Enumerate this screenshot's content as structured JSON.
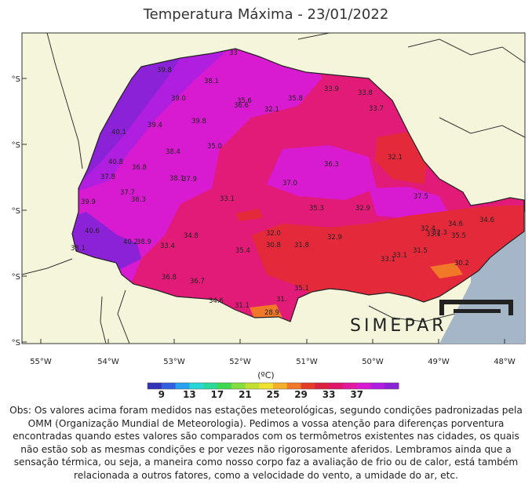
{
  "title": "Temperatura Máxima - 23/01/2022",
  "longitude_ticks": [
    "55°W",
    "54°W",
    "53°W",
    "52°W",
    "51°W",
    "50°W",
    "49°W",
    "48°W"
  ],
  "latitude_ticks": [
    "°S",
    "°S",
    "°S",
    "°S",
    "°S"
  ],
  "station_values": [
    "33",
    "39.8",
    "38.1",
    "39.0",
    "35.6",
    "36.6",
    "35.8",
    "33.9",
    "33.8",
    "32.1",
    "33.7",
    "39.8",
    "39.4",
    "40.1",
    "35.0",
    "38.4",
    "32.1",
    "40.8",
    "36.8",
    "36.3",
    "37.8",
    "38.1",
    "37.9",
    "37.0",
    "37.7",
    "36.3",
    "37.5",
    "39.9",
    "33.1",
    "35.3",
    "32.9",
    "34.6",
    "34.6",
    "40.6",
    "34.8",
    "32.0",
    "32.9",
    "32.4",
    "40.2",
    "38.9",
    "33.4",
    "35.4",
    "30.8",
    "31.8",
    "33.1",
    "32.3",
    "33.1",
    "35.5",
    "38.1",
    "31.5",
    "33.1",
    "30.2",
    "36.8",
    "36.7",
    "35.1",
    "34.6",
    "31.1",
    "31.",
    "28.9"
  ],
  "colorbar": {
    "unit": "(ºC)",
    "labels": [
      "9",
      "13",
      "17",
      "21",
      "25",
      "29",
      "33",
      "37"
    ],
    "colors": [
      "#3434b8",
      "#3460e0",
      "#2aa0f0",
      "#27d6d6",
      "#28d99a",
      "#3ed850",
      "#84dc3e",
      "#c2e034",
      "#f0e030",
      "#f5b02a",
      "#f07828",
      "#e43c28",
      "#dc2040",
      "#e21668",
      "#e21aa0",
      "#d81ad0",
      "#b01ee0",
      "#8c22d8"
    ]
  },
  "colors": {
    "ocean": "#a4b6c8",
    "land_outside": "#f5f5dc"
  },
  "logo_text": "SIMEPAR",
  "observation": "Obs: Os valores acima foram medidos nas estações meteorológicas, segundo condições padronizadas pela OMM (Organização Mundial de Meteorologia). Pedimos a vossa atenção para diferenças porventura encontradas quando estes valores são comparados com os termômetros existentes nas cidades, os quais não estão sob as mesmas condições e por vezes não rigorosamente aferidos. Lembramos ainda que a sensação térmica, ou seja, a maneira como nosso corpo faz a avaliação de frio ou de calor, está também relacionada a outros fatores, como a velocidade do vento, a umidade do ar, etc."
}
